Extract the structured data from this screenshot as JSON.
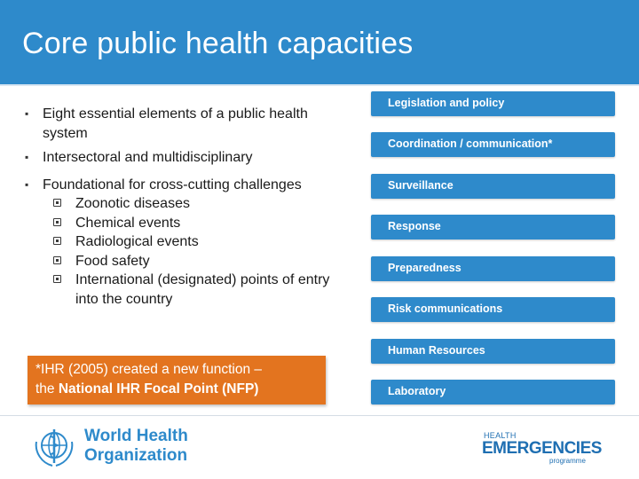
{
  "slide": {
    "title": "Core public health capacities"
  },
  "left": {
    "bullets": [
      "Eight essential elements of a public health system",
      "Intersectoral and multidisciplinary",
      "Foundational for cross-cutting challenges"
    ],
    "sub_bullets": [
      "Zoonotic diseases",
      "Chemical events",
      "Radiological events",
      "Food safety",
      "International (designated) points of entry into the country"
    ]
  },
  "callout": {
    "line1": "*IHR (2005) created a new function –",
    "line2_prefix": "the ",
    "line2_bold": "National IHR Focal Point (NFP)"
  },
  "capacities": [
    "Legislation and policy",
    "Coordination / communication*",
    "Surveillance",
    "Response",
    "Preparedness",
    "Risk communications",
    "Human Resources",
    "Laboratory"
  ],
  "logos": {
    "who_line1": "World Health",
    "who_line2": "Organization",
    "emergencies_top": "HEALTH",
    "emergencies_main": "EMERGENCIES",
    "emergencies_bottom": "programme"
  },
  "colors": {
    "header_blue": "#2e8acb",
    "capacity_blue": "#2e8acb",
    "callout_orange": "#e3741f"
  }
}
